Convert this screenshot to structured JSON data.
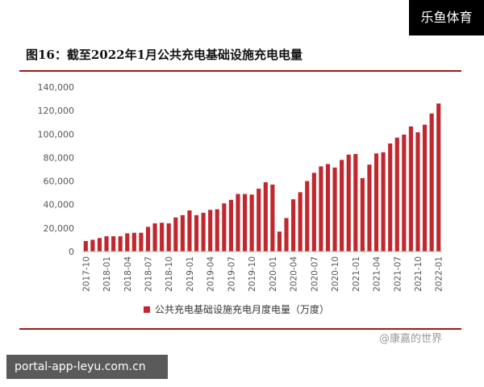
{
  "watermark": {
    "brand": "乐鱼体育",
    "source": "@康嘉的世界"
  },
  "url": "portal-app-leyu.com.cn",
  "chart_data": {
    "type": "bar",
    "title": "图16：截至2022年1月公共充电基础设施充电电量",
    "ylim": [
      0,
      140000
    ],
    "yticks": [
      "0",
      "20,000",
      "40,000",
      "60,000",
      "80,000",
      "100,000",
      "120,000",
      "140,000"
    ],
    "ytick_values": [
      0,
      20000,
      40000,
      60000,
      80000,
      100000,
      120000,
      140000
    ],
    "grid": false,
    "legend_position": "bottom",
    "categories": [
      "2017-10",
      "2017-11",
      "2017-12",
      "2018-01",
      "2018-02",
      "2018-03",
      "2018-04",
      "2018-05",
      "2018-06",
      "2018-07",
      "2018-08",
      "2018-09",
      "2018-10",
      "2018-11",
      "2018-12",
      "2019-01",
      "2019-02",
      "2019-03",
      "2019-04",
      "2019-05",
      "2019-06",
      "2019-07",
      "2019-08",
      "2019-09",
      "2019-10",
      "2019-11",
      "2019-12",
      "2020-01",
      "2020-02",
      "2020-03",
      "2020-04",
      "2020-05",
      "2020-06",
      "2020-07",
      "2020-08",
      "2020-09",
      "2020-10",
      "2020-11",
      "2020-12",
      "2021-01",
      "2021-02",
      "2021-03",
      "2021-04",
      "2021-05",
      "2021-06",
      "2021-07",
      "2021-08",
      "2021-09",
      "2021-10",
      "2021-11",
      "2021-12",
      "2022-01"
    ],
    "tick_labels": [
      "2017-10",
      "2018-01",
      "2018-04",
      "2018-07",
      "2018-10",
      "2019-01",
      "2019-04",
      "2019-07",
      "2019-10",
      "2020-01",
      "2020-04",
      "2020-07",
      "2020-10",
      "2021-01",
      "2021-04",
      "2021-07",
      "2021-10",
      "2022-01"
    ],
    "series": [
      {
        "name": "公共充电基础设施充电月度电量（万度）",
        "color": "#c0282e",
        "values": [
          9000,
          10000,
          11500,
          13000,
          13000,
          13000,
          15500,
          16000,
          16000,
          21000,
          24000,
          24500,
          24000,
          29000,
          31000,
          35000,
          31000,
          33000,
          35500,
          36000,
          41000,
          44000,
          49000,
          49000,
          48500,
          53500,
          59000,
          57000,
          17000,
          28500,
          44500,
          50500,
          60000,
          67000,
          72500,
          74500,
          71500,
          78000,
          82500,
          83000,
          62500,
          74000,
          83500,
          84500,
          92000,
          97000,
          99500,
          106500,
          101500,
          108000,
          117500,
          126000
        ]
      }
    ]
  }
}
